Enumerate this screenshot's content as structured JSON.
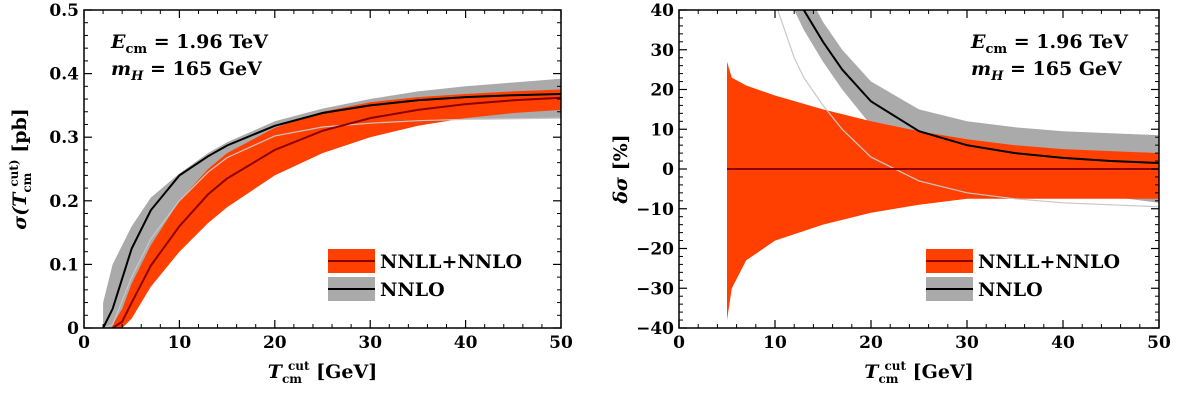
{
  "chart_data": [
    {
      "type": "line",
      "title": "",
      "xlabel": "T_cm^cut [GeV]",
      "ylabel": "σ(T_cm^cut) [pb]",
      "xlim": [
        0,
        50
      ],
      "ylim": [
        0,
        0.5
      ],
      "xticks": [
        "0",
        "10",
        "20",
        "30",
        "40",
        "50"
      ],
      "yticks": [
        "0",
        "0.1",
        "0.2",
        "0.3",
        "0.4",
        "0.5"
      ],
      "grid": false,
      "legend_position": "bottom-right",
      "annotations": [
        "E_cm = 1.96 TeV",
        "m_H = 165 GeV"
      ],
      "series": [
        {
          "name": "NNLO",
          "color": "#aaaaaa",
          "line_color": "#000000",
          "x": [
            2,
            3,
            5,
            7,
            10,
            13,
            15,
            20,
            25,
            30,
            35,
            40,
            45,
            50
          ],
          "central": [
            0.0,
            0.03,
            0.125,
            0.185,
            0.24,
            0.27,
            0.287,
            0.318,
            0.338,
            0.35,
            0.358,
            0.363,
            0.366,
            0.368
          ],
          "upper": [
            0.04,
            0.1,
            0.16,
            0.205,
            0.243,
            0.275,
            0.292,
            0.325,
            0.345,
            0.36,
            0.372,
            0.38,
            0.386,
            0.392
          ],
          "lower": [
            0.0,
            0.0,
            0.06,
            0.12,
            0.19,
            0.242,
            0.265,
            0.3,
            0.315,
            0.322,
            0.326,
            0.328,
            0.329,
            0.33
          ],
          "lower_line": [
            0.0,
            0.005,
            0.08,
            0.14,
            0.2,
            0.245,
            0.268,
            0.302,
            0.316,
            0.322,
            0.326,
            0.328,
            0.329,
            0.33
          ]
        },
        {
          "name": "NNLL+NNLO",
          "color": "#ff4000",
          "line_color": "#8b0000",
          "x": [
            3,
            4,
            5,
            7,
            10,
            13,
            15,
            20,
            25,
            30,
            35,
            40,
            45,
            50
          ],
          "central": [
            0.0,
            0.01,
            0.04,
            0.098,
            0.16,
            0.21,
            0.235,
            0.28,
            0.31,
            0.33,
            0.343,
            0.352,
            0.358,
            0.362
          ],
          "upper": [
            0.005,
            0.03,
            0.07,
            0.13,
            0.2,
            0.25,
            0.275,
            0.315,
            0.34,
            0.355,
            0.363,
            0.368,
            0.372,
            0.375
          ],
          "lower": [
            0.0,
            0.0,
            0.015,
            0.065,
            0.12,
            0.165,
            0.19,
            0.24,
            0.275,
            0.3,
            0.318,
            0.33,
            0.338,
            0.343
          ]
        }
      ]
    },
    {
      "type": "line",
      "title": "",
      "xlabel": "T_cm^cut [GeV]",
      "ylabel": "δσ [%]",
      "xlim": [
        0,
        50
      ],
      "ylim": [
        -40,
        40
      ],
      "xticks": [
        "0",
        "10",
        "20",
        "30",
        "40",
        "50"
      ],
      "yticks": [
        "−40",
        "−30",
        "−20",
        "−10",
        "0",
        "10",
        "20",
        "30",
        "40"
      ],
      "grid": false,
      "legend_position": "bottom-right",
      "annotations": [
        "E_cm = 1.96 TeV",
        "m_H = 165 GeV"
      ],
      "series": [
        {
          "name": "NNLO",
          "color": "#aaaaaa",
          "line_color": "#000000",
          "x": [
            10,
            12,
            13,
            15,
            17,
            20,
            25,
            30,
            35,
            40,
            45,
            50
          ],
          "central": [
            58,
            45,
            40,
            32,
            25,
            17,
            9.5,
            6,
            4,
            2.8,
            2,
            1.5
          ],
          "upper": [
            72,
            52,
            46,
            37,
            30,
            22,
            15,
            12,
            10.5,
            9.5,
            9,
            8.5
          ],
          "lower": [
            44,
            40,
            35,
            27,
            20,
            11,
            3,
            -1.5,
            -4,
            -5.5,
            -7,
            -8.5
          ],
          "lower_line": [
            42,
            28,
            23,
            16,
            10,
            3,
            -3,
            -6,
            -7.5,
            -8.5,
            -9,
            -9.5
          ]
        },
        {
          "name": "NNLL+NNLO",
          "color": "#ff4000",
          "line_color": "#8b0000",
          "x": [
            5,
            5.5,
            7,
            10,
            15,
            20,
            25,
            30,
            35,
            40,
            45,
            50
          ],
          "central": [
            0,
            0,
            0,
            0,
            0,
            0,
            0,
            0,
            0,
            0,
            0,
            0
          ],
          "upper": [
            27,
            23,
            21,
            18.5,
            15,
            12,
            9.5,
            7.5,
            6,
            5,
            4.5,
            4
          ],
          "lower": [
            -38,
            -30,
            -23,
            -18,
            -14,
            -11,
            -9,
            -7.5,
            -7.5,
            -7.5,
            -7.5,
            -7.5
          ]
        }
      ]
    }
  ]
}
